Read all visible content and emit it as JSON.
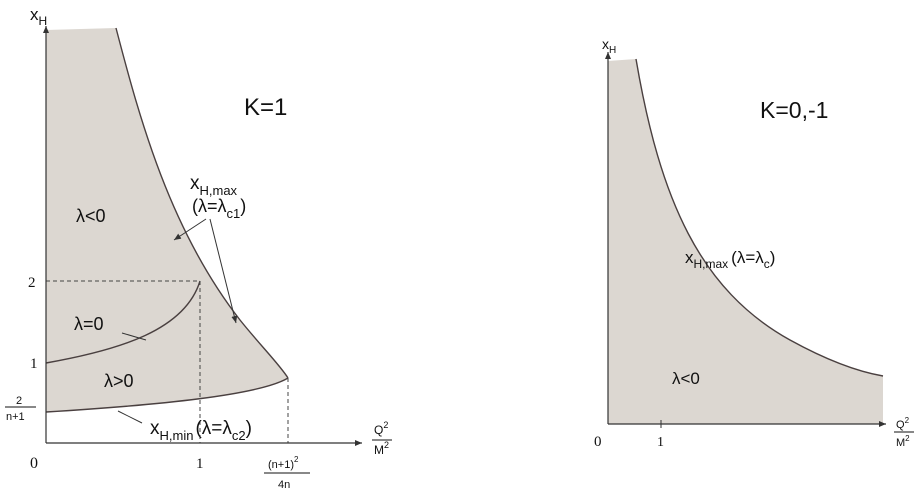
{
  "colors": {
    "region_fill": "#dcd7d1",
    "curve": "#4a4040",
    "axis": "#333333"
  },
  "left_panel": {
    "title": "K=1",
    "y_axis": {
      "label_main": "x",
      "label_sub": "H"
    },
    "x_axis": {
      "num": "Q",
      "num_sup": "2",
      "den": "M",
      "den_sup": "2"
    },
    "origin": "0",
    "y_ticks": {
      "one": "1",
      "two": "2",
      "frac_num": "2",
      "frac_den": "n+1"
    },
    "x_ticks": {
      "one": "1",
      "frac_num": "(n+1)",
      "frac_num_sup": "2",
      "frac_den": "4n"
    },
    "regions": {
      "neg": "λ<0",
      "zero": "λ=0",
      "pos": "λ>0"
    },
    "xmax_label": {
      "main": "x",
      "sub": "H,max",
      "paren_open": "(λ=λ",
      "paren_sub": "c1",
      "paren_close": ")"
    },
    "xmin_label": {
      "main": "x",
      "sub": "H,min",
      "paren_open": "(λ=λ",
      "paren_sub": "c2",
      "paren_close": ")"
    }
  },
  "right_panel": {
    "title": "K=0,-1",
    "y_axis": {
      "label_main": "x",
      "label_sub": "H"
    },
    "x_axis": {
      "num": "Q",
      "num_sup": "2",
      "den": "M",
      "den_sup": "2"
    },
    "origin": "0",
    "x_tick_one": "1",
    "region": "λ<0",
    "xmax_label": {
      "main": "x",
      "sub": "H,max",
      "paren_open": "(λ=λ",
      "paren_sub": "c",
      "paren_close": ")"
    }
  }
}
